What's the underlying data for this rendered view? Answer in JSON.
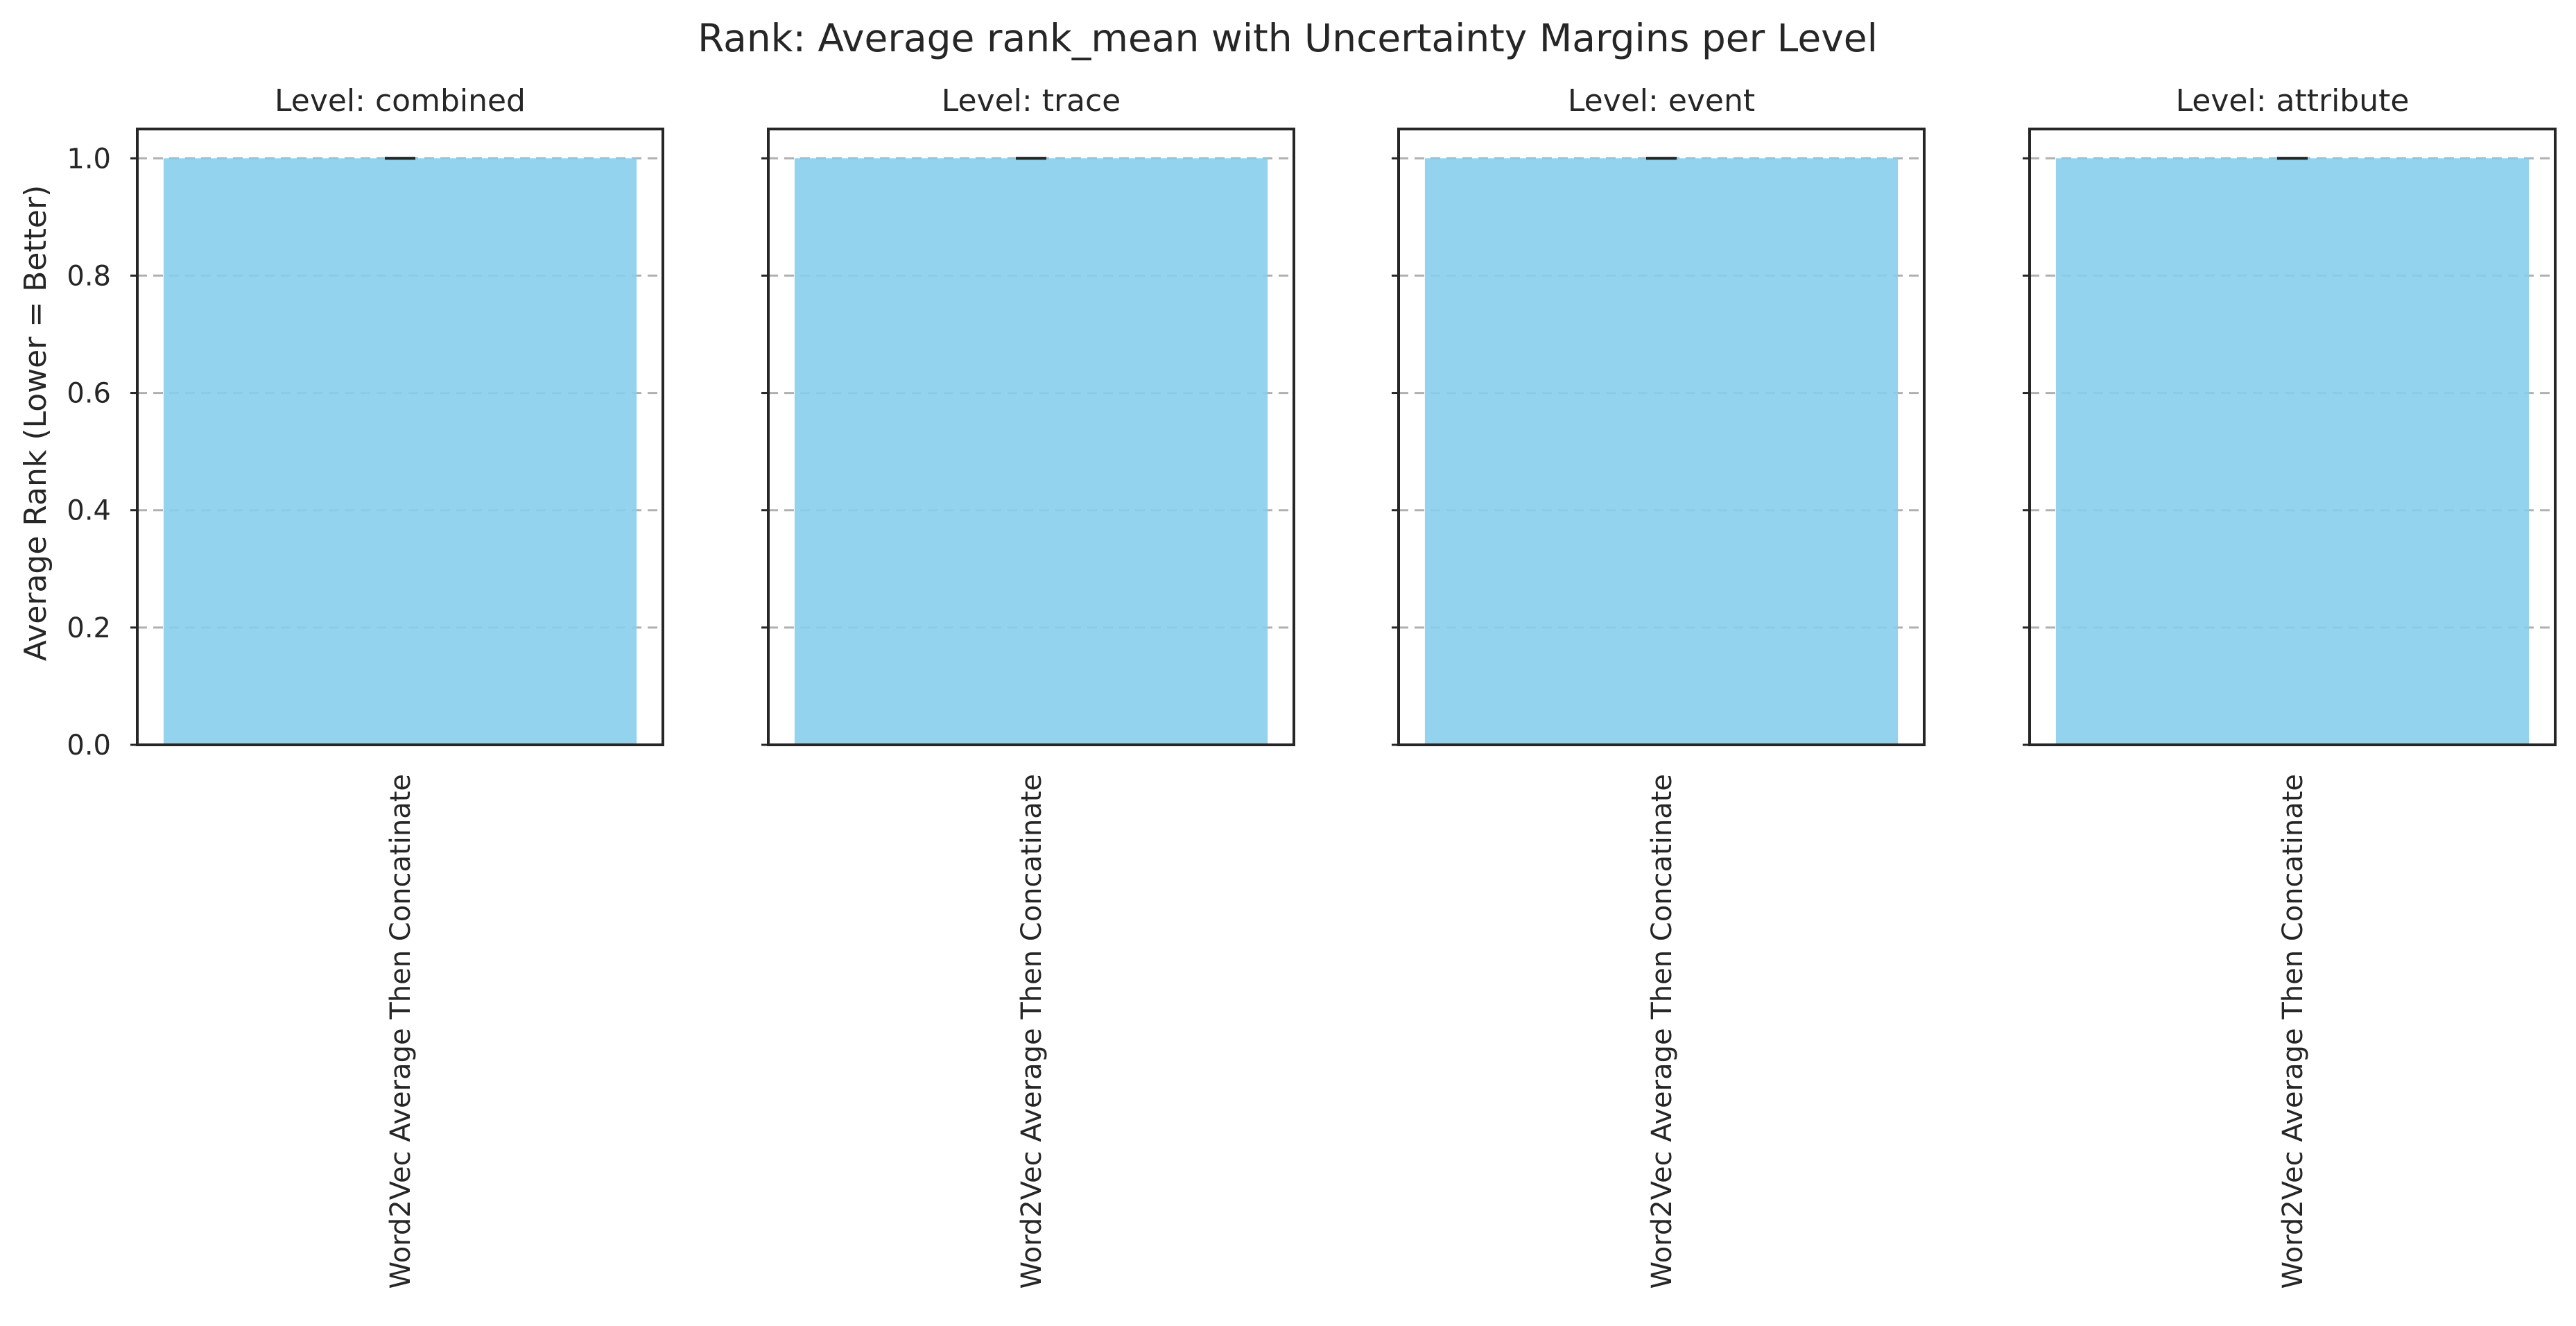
{
  "chart_data": {
    "type": "bar",
    "suptitle": "Rank: Average rank_mean with Uncertainty Margins per Level",
    "ylabel": "Average Rank (Lower = Better)",
    "ylim": [
      0,
      1.05
    ],
    "yticks": [
      0.0,
      0.2,
      0.4,
      0.6,
      0.8,
      1.0
    ],
    "ytick_labels": [
      "0.0",
      "0.2",
      "0.4",
      "0.6",
      "0.8",
      "1.0"
    ],
    "grid": "y-dashed",
    "bar_color": "#87CEEB",
    "sharey": true,
    "panels": [
      {
        "title": "Level: combined",
        "categories": [
          "Word2Vec Average Then Concatinate"
        ],
        "values": [
          1.0
        ],
        "error": [
          0.0
        ]
      },
      {
        "title": "Level: trace",
        "categories": [
          "Word2Vec Average Then Concatinate"
        ],
        "values": [
          1.0
        ],
        "error": [
          0.0
        ]
      },
      {
        "title": "Level: event",
        "categories": [
          "Word2Vec Average Then Concatinate"
        ],
        "values": [
          1.0
        ],
        "error": [
          0.0
        ]
      },
      {
        "title": "Level: attribute",
        "categories": [
          "Word2Vec Average Then Concatinate"
        ],
        "values": [
          1.0
        ],
        "error": [
          0.0
        ]
      }
    ]
  }
}
